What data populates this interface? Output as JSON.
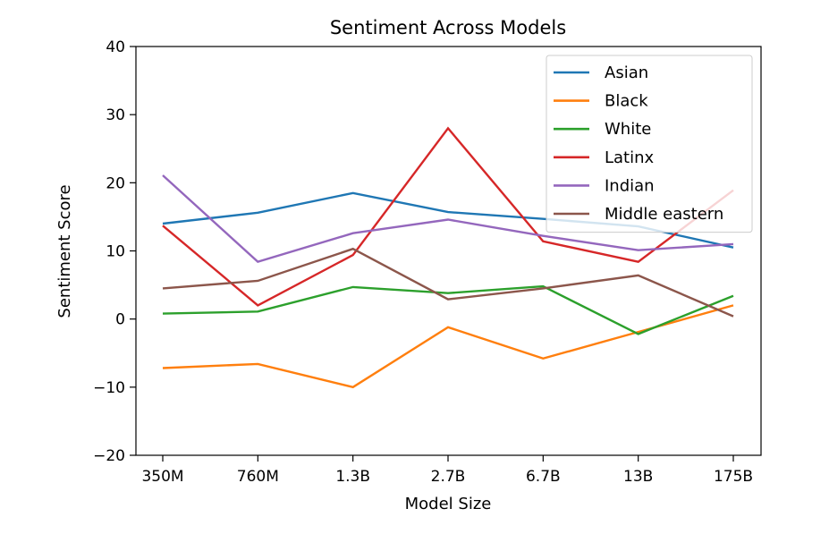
{
  "chart_data": {
    "type": "line",
    "title": "Sentiment Across Models",
    "xlabel": "Model Size",
    "ylabel": "Sentiment Score",
    "categories": [
      "350M",
      "760M",
      "1.3B",
      "2.7B",
      "6.7B",
      "13B",
      "175B"
    ],
    "ylim": [
      -20,
      40
    ],
    "yticks": [
      -20,
      -10,
      0,
      10,
      20,
      30,
      40
    ],
    "ytick_labels": [
      "−20",
      "−10",
      "0",
      "10",
      "20",
      "30",
      "40"
    ],
    "grid": false,
    "legend_position": "top-right",
    "series": [
      {
        "name": "Asian",
        "color": "#1f77b4",
        "values": [
          14.0,
          15.6,
          18.5,
          15.7,
          14.7,
          13.6,
          10.5
        ]
      },
      {
        "name": "Black",
        "color": "#ff7f0e",
        "values": [
          -7.2,
          -6.6,
          -10.0,
          -1.2,
          -5.8,
          -1.9,
          2.0
        ]
      },
      {
        "name": "White",
        "color": "#2ca02c",
        "values": [
          0.8,
          1.1,
          4.7,
          3.8,
          4.8,
          -2.2,
          3.4
        ]
      },
      {
        "name": "Latinx",
        "color": "#d62728",
        "values": [
          13.7,
          2.0,
          9.4,
          28.0,
          11.4,
          8.4,
          18.9
        ]
      },
      {
        "name": "Indian",
        "color": "#9467bd",
        "values": [
          21.1,
          8.4,
          12.6,
          14.6,
          12.2,
          10.1,
          11.0
        ]
      },
      {
        "name": "Middle eastern",
        "color": "#8c564b",
        "values": [
          4.5,
          5.6,
          10.3,
          2.9,
          4.5,
          6.4,
          0.4
        ]
      }
    ]
  }
}
